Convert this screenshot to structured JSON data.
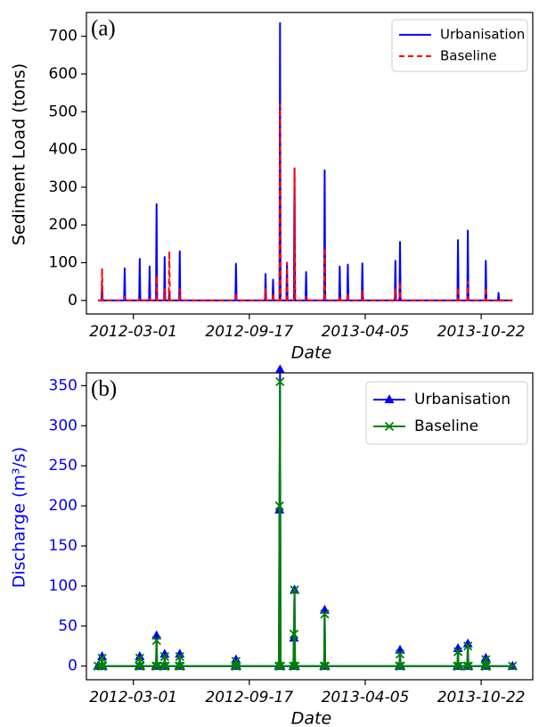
{
  "chart_data": [
    {
      "type": "line",
      "panel_label": "(a)",
      "y_label": "Sediment Load (tons)",
      "x_label": "Date",
      "label_color": "#000000",
      "legend": "upper right",
      "xlim": [
        "2011-12-11",
        "2014-01-19"
      ],
      "ylim": [
        -36,
        763
      ],
      "xticks": [
        "2012-03-01",
        "2012-09-17",
        "2013-04-05",
        "2013-10-22"
      ],
      "yticks": [
        0,
        100,
        200,
        300,
        400,
        500,
        600,
        700
      ],
      "x": [
        "2011-12-31",
        "2012-01-06",
        "2012-01-07",
        "2012-01-08",
        "2012-02-14",
        "2012-02-15",
        "2012-02-16",
        "2012-03-11",
        "2012-03-12",
        "2012-03-13",
        "2012-03-28",
        "2012-03-29",
        "2012-03-30",
        "2012-04-09",
        "2012-04-10",
        "2012-04-11",
        "2012-04-23",
        "2012-04-24",
        "2012-04-25",
        "2012-05-01",
        "2012-05-02",
        "2012-05-03",
        "2012-05-19",
        "2012-05-20",
        "2012-05-21",
        "2012-08-24",
        "2012-08-25",
        "2012-08-26",
        "2012-10-14",
        "2012-10-15",
        "2012-10-16",
        "2012-10-27",
        "2012-10-28",
        "2012-10-29",
        "2012-11-08",
        "2012-11-09",
        "2012-11-10",
        "2012-11-20",
        "2012-11-21",
        "2012-11-22",
        "2012-12-03",
        "2012-12-04",
        "2012-12-05",
        "2012-12-23",
        "2012-12-24",
        "2012-12-25",
        "2013-01-24",
        "2013-01-25",
        "2013-01-26",
        "2013-02-19",
        "2013-02-20",
        "2013-02-21",
        "2013-03-05",
        "2013-03-06",
        "2013-03-07",
        "2013-03-30",
        "2013-03-31",
        "2013-04-01",
        "2013-05-26",
        "2013-05-27",
        "2013-05-28",
        "2013-06-03",
        "2013-06-04",
        "2013-06-05",
        "2013-09-11",
        "2013-09-12",
        "2013-09-13",
        "2013-09-28",
        "2013-09-29",
        "2013-09-30",
        "2013-10-29",
        "2013-10-30",
        "2013-10-31",
        "2013-11-20",
        "2013-11-21",
        "2013-11-22",
        "2013-12-15"
      ],
      "series": [
        {
          "name": "Urbanisation",
          "color": "#0000ff",
          "linestyle": "solid",
          "marker": "none",
          "values": [
            0,
            0,
            41,
            0,
            0,
            85,
            0,
            0,
            110,
            0,
            0,
            90,
            0,
            0,
            255,
            0,
            0,
            115,
            0,
            0,
            20,
            0,
            0,
            130,
            0,
            0,
            97,
            0,
            0,
            70,
            0,
            0,
            55,
            0,
            0,
            735,
            0,
            0,
            100,
            0,
            0,
            350,
            0,
            0,
            75,
            0,
            0,
            345,
            0,
            0,
            90,
            0,
            0,
            95,
            0,
            0,
            98,
            0,
            0,
            105,
            0,
            0,
            155,
            0,
            0,
            160,
            0,
            0,
            185,
            0,
            0,
            105,
            0,
            0,
            20,
            0,
            0
          ]
        },
        {
          "name": "Baseline",
          "color": "#ff0000",
          "linestyle": "dashed",
          "marker": "none",
          "values": [
            0,
            0,
            85,
            0,
            0,
            10,
            0,
            0,
            5,
            0,
            0,
            5,
            0,
            0,
            65,
            0,
            0,
            30,
            0,
            0,
            130,
            0,
            0,
            30,
            0,
            0,
            20,
            0,
            0,
            30,
            0,
            0,
            20,
            0,
            0,
            520,
            0,
            0,
            100,
            0,
            0,
            350,
            0,
            0,
            10,
            0,
            0,
            140,
            0,
            0,
            10,
            0,
            0,
            20,
            0,
            0,
            25,
            0,
            0,
            30,
            0,
            0,
            50,
            0,
            0,
            35,
            0,
            0,
            50,
            0,
            0,
            35,
            0,
            0,
            5,
            0,
            0
          ]
        }
      ]
    },
    {
      "type": "line",
      "panel_label": "(b)",
      "y_label": "Discharge (m³/s)",
      "x_label": "Date",
      "label_color": "#0000ff",
      "legend": "upper right",
      "xlim": [
        "2011-12-11",
        "2014-01-19"
      ],
      "ylim": [
        -17,
        366
      ],
      "xticks": [
        "2012-03-01",
        "2012-09-17",
        "2013-04-05",
        "2013-10-22"
      ],
      "yticks": [
        0,
        50,
        100,
        150,
        200,
        250,
        300,
        350
      ],
      "x": [
        "2011-12-31",
        "2012-01-06",
        "2012-01-07",
        "2012-01-08",
        "2012-03-11",
        "2012-03-12",
        "2012-03-13",
        "2012-04-09",
        "2012-04-10",
        "2012-04-11",
        "2012-04-23",
        "2012-04-24",
        "2012-04-25",
        "2012-05-19",
        "2012-05-20",
        "2012-05-21",
        "2012-08-24",
        "2012-08-25",
        "2012-08-26",
        "2012-11-07",
        "2012-11-08",
        "2012-11-09",
        "2012-11-10",
        "2012-12-02",
        "2012-12-03",
        "2012-12-04",
        "2012-12-05",
        "2013-01-24",
        "2013-01-25",
        "2013-01-26",
        "2013-06-03",
        "2013-06-04",
        "2013-06-05",
        "2013-09-11",
        "2013-09-12",
        "2013-09-13",
        "2013-09-28",
        "2013-09-29",
        "2013-09-30",
        "2013-10-29",
        "2013-10-30",
        "2013-10-31",
        "2013-12-15"
      ],
      "series": [
        {
          "name": "Urbanisation",
          "color": "#0000ff",
          "linestyle": "solid",
          "marker": "triangle",
          "values": [
            0,
            0,
            12,
            0,
            0,
            12,
            0,
            0,
            38,
            0,
            0,
            15,
            0,
            0,
            15,
            0,
            0,
            8,
            0,
            0,
            195,
            370,
            0,
            0,
            35,
            95,
            0,
            0,
            70,
            0,
            0,
            20,
            0,
            0,
            22,
            0,
            0,
            28,
            0,
            0,
            10,
            0,
            0
          ]
        },
        {
          "name": "Baseline",
          "color": "#008000",
          "linestyle": "solid",
          "marker": "x",
          "values": [
            0,
            0,
            10,
            0,
            0,
            10,
            0,
            0,
            32,
            0,
            0,
            12,
            0,
            0,
            12,
            0,
            0,
            6,
            0,
            0,
            200,
            355,
            0,
            0,
            40,
            95,
            0,
            0,
            65,
            0,
            0,
            15,
            0,
            0,
            18,
            0,
            0,
            25,
            0,
            0,
            8,
            0,
            0
          ]
        }
      ]
    }
  ]
}
